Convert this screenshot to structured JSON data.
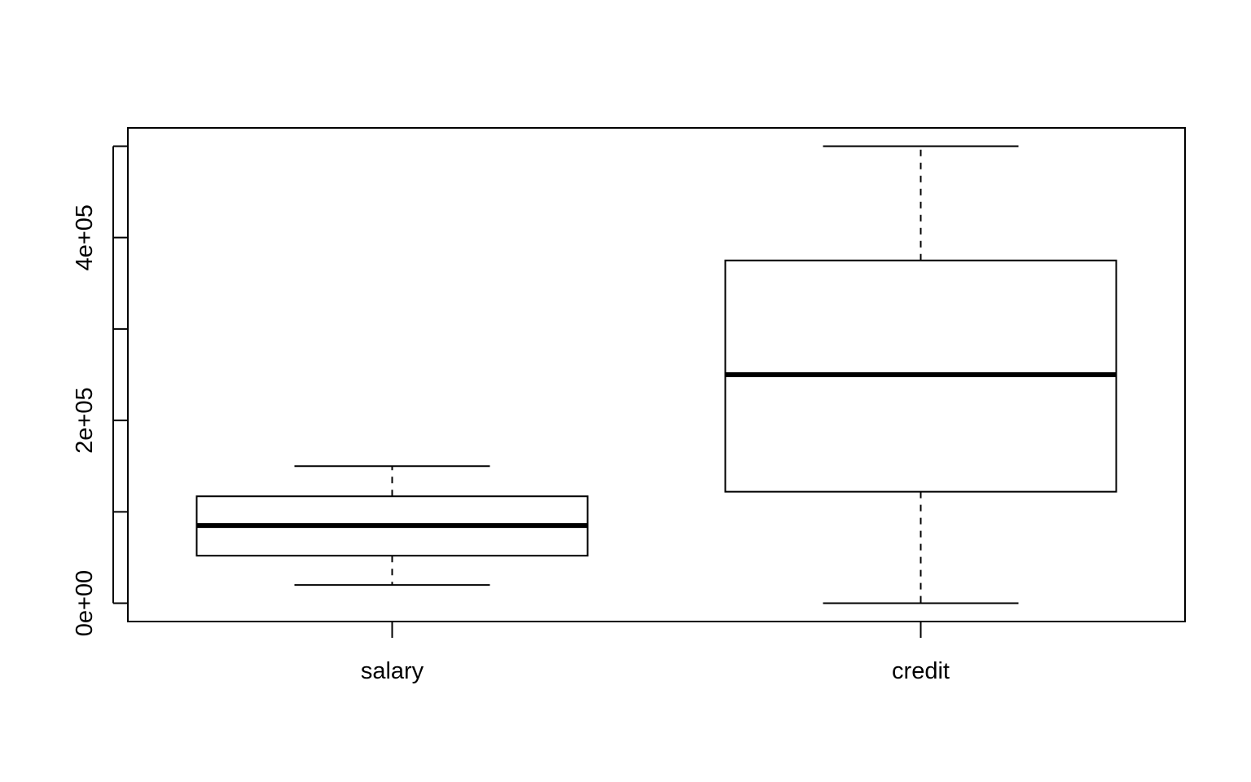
{
  "chart_data": {
    "type": "boxplot",
    "title": "",
    "xlabel": "",
    "ylabel": "",
    "ylim": [
      -20000,
      520000
    ],
    "y_ticks": [
      0,
      100000,
      200000,
      300000,
      400000,
      500000
    ],
    "y_tick_labels": [
      "0e+00",
      "",
      "2e+05",
      "",
      "4e+05",
      ""
    ],
    "categories": [
      "salary",
      "credit"
    ],
    "boxes": [
      {
        "category": "salary",
        "whisker_low": 20000,
        "q1": 52000,
        "median": 85000,
        "q3": 117000,
        "whisker_high": 150000
      },
      {
        "category": "credit",
        "whisker_low": 0,
        "q1": 122000,
        "median": 250000,
        "q3": 375000,
        "whisker_high": 500000
      }
    ],
    "grid": false,
    "legend": "none",
    "colors": {
      "stroke": "#000000",
      "fill": "#ffffff"
    }
  }
}
